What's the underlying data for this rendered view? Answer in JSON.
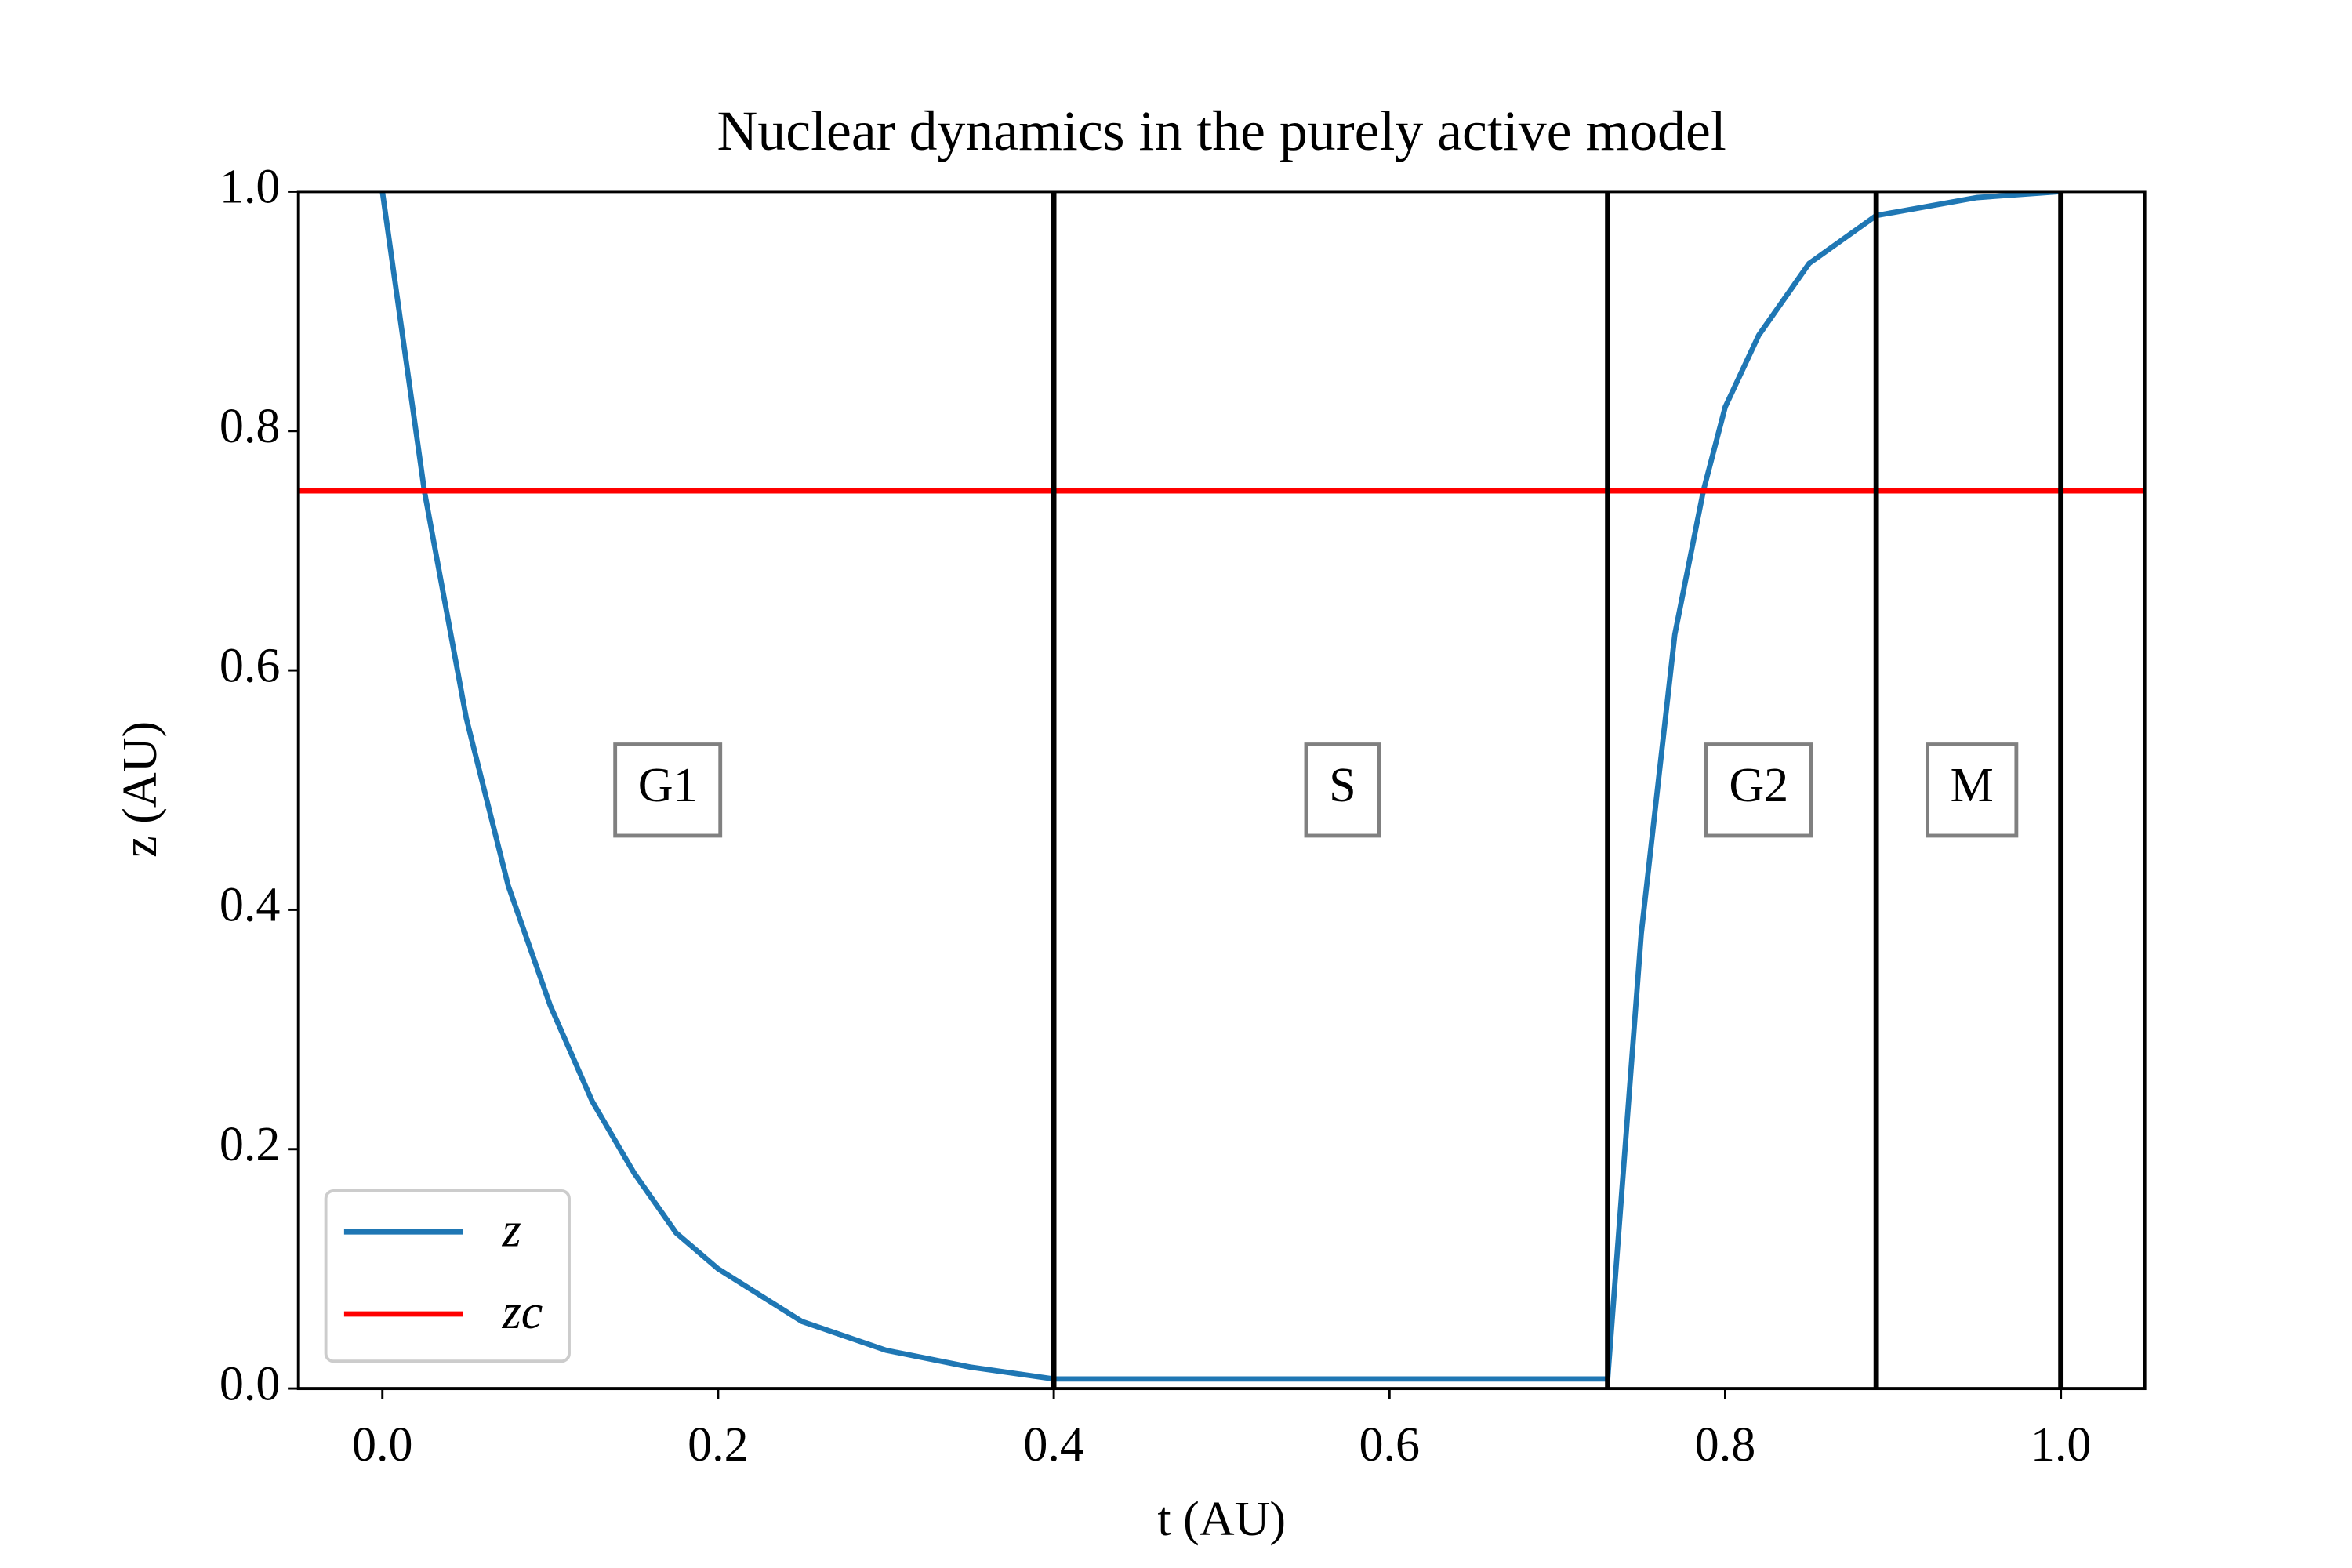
{
  "chart_data": {
    "type": "line",
    "title": "Nuclear dynamics in the purely active model",
    "xlabel": "t (AU)",
    "ylabel": "z (AU)",
    "xlim": [
      -0.05,
      1.05
    ],
    "ylim": [
      0,
      1
    ],
    "xticks": [
      {
        "value": 0,
        "label": "0.0"
      },
      {
        "value": 0.2,
        "label": "0.2"
      },
      {
        "value": 0.4,
        "label": "0.4"
      },
      {
        "value": 0.6,
        "label": "0.6"
      },
      {
        "value": 0.8,
        "label": "0.8"
      },
      {
        "value": 1,
        "label": "1.0"
      }
    ],
    "yticks": [
      {
        "value": 0,
        "label": "0.0"
      },
      {
        "value": 0.2,
        "label": "0.2"
      },
      {
        "value": 0.4,
        "label": "0.4"
      },
      {
        "value": 0.6,
        "label": "0.6"
      },
      {
        "value": 0.8,
        "label": "0.8"
      },
      {
        "value": 1,
        "label": "1.0"
      }
    ],
    "series": [
      {
        "name": "z",
        "color": "#1f77b4",
        "x": [
          0,
          0.025,
          0.05,
          0.075,
          0.1,
          0.125,
          0.15,
          0.175,
          0.2,
          0.25,
          0.3,
          0.35,
          0.4,
          0.73,
          0.75,
          0.77,
          0.787,
          0.8,
          0.82,
          0.85,
          0.89,
          0.95,
          1.0
        ],
        "values": [
          1,
          0.75,
          0.56,
          0.42,
          0.32,
          0.24,
          0.18,
          0.13,
          0.1,
          0.056,
          0.032,
          0.018,
          0.008,
          0.008,
          0.38,
          0.63,
          0.75,
          0.82,
          0.88,
          0.94,
          0.98,
          0.995,
          1.0
        ]
      },
      {
        "name": "zc",
        "color": "#ff0000",
        "x": [
          -0.05,
          1.05
        ],
        "values": [
          0.75,
          0.75
        ]
      }
    ],
    "vlines": [
      0.4,
      0.73,
      0.89,
      1.0
    ],
    "vline_color": "#000000",
    "annotations": [
      {
        "text": "G1",
        "x": 0.17,
        "y": 0.5
      },
      {
        "text": "S",
        "x": 0.572,
        "y": 0.5
      },
      {
        "text": "G2",
        "x": 0.82,
        "y": 0.5
      },
      {
        "text": "M",
        "x": 0.947,
        "y": 0.5
      }
    ],
    "legend": "lower left"
  }
}
